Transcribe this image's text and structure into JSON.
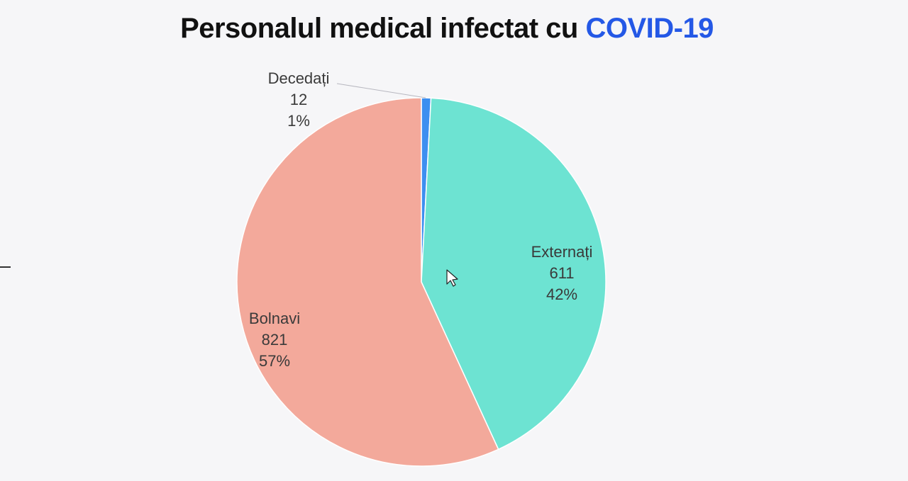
{
  "title": {
    "main": "Personalul medical infectat cu",
    "highlight": "COVID-19"
  },
  "colors": {
    "highlight": "#2458e6",
    "decedati": "#3d8ff0",
    "externati": "#6de3d2",
    "bolnavi": "#f3a99b"
  },
  "chart_data": {
    "type": "pie",
    "title": "Personalul medical infectat cu COVID-19",
    "slices": [
      {
        "label": "Decedați",
        "value": 12,
        "percent": "1%",
        "color": "#3d8ff0"
      },
      {
        "label": "Externați",
        "value": 611,
        "percent": "42%",
        "color": "#6de3d2"
      },
      {
        "label": "Bolnavi",
        "value": 821,
        "percent": "57%",
        "color": "#f3a99b"
      }
    ],
    "start_angle_deg": 0,
    "direction": "clockwise",
    "legend": "none",
    "labels": "outside for small slices, inside otherwise"
  }
}
